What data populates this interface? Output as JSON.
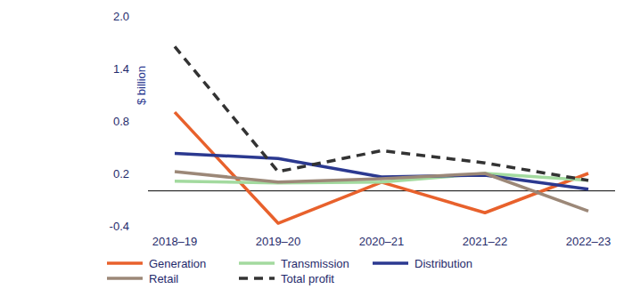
{
  "chart_data": {
    "type": "line",
    "ylabel": "$ billion",
    "categories": [
      "2018–19",
      "2019–20",
      "2020–21",
      "2021–22",
      "2022–23"
    ],
    "series": [
      {
        "name": "Generation",
        "color": "#e8612c",
        "line_style": "solid",
        "values": [
          0.9,
          -0.37,
          0.1,
          -0.25,
          0.2
        ]
      },
      {
        "name": "Transmission",
        "color": "#a3da9f",
        "line_style": "solid",
        "values": [
          0.11,
          0.09,
          0.1,
          0.2,
          0.12
        ]
      },
      {
        "name": "Distribution",
        "color": "#2b3990",
        "line_style": "solid",
        "values": [
          0.43,
          0.37,
          0.16,
          0.18,
          0.02
        ]
      },
      {
        "name": "Retail",
        "color": "#9c8878",
        "line_style": "solid",
        "values": [
          0.22,
          0.1,
          0.14,
          0.2,
          -0.23
        ]
      },
      {
        "name": "Total profit",
        "color": "#333333",
        "line_style": "dashed",
        "values": [
          1.65,
          0.22,
          0.46,
          0.32,
          0.12
        ]
      }
    ],
    "ylim": [
      -0.4,
      2.0
    ],
    "yticks": [
      -0.4,
      0.2,
      0.8,
      1.4,
      {
        "value": 2.0,
        "label": "2.0"
      }
    ],
    "grid": false,
    "legend": "bottom"
  }
}
